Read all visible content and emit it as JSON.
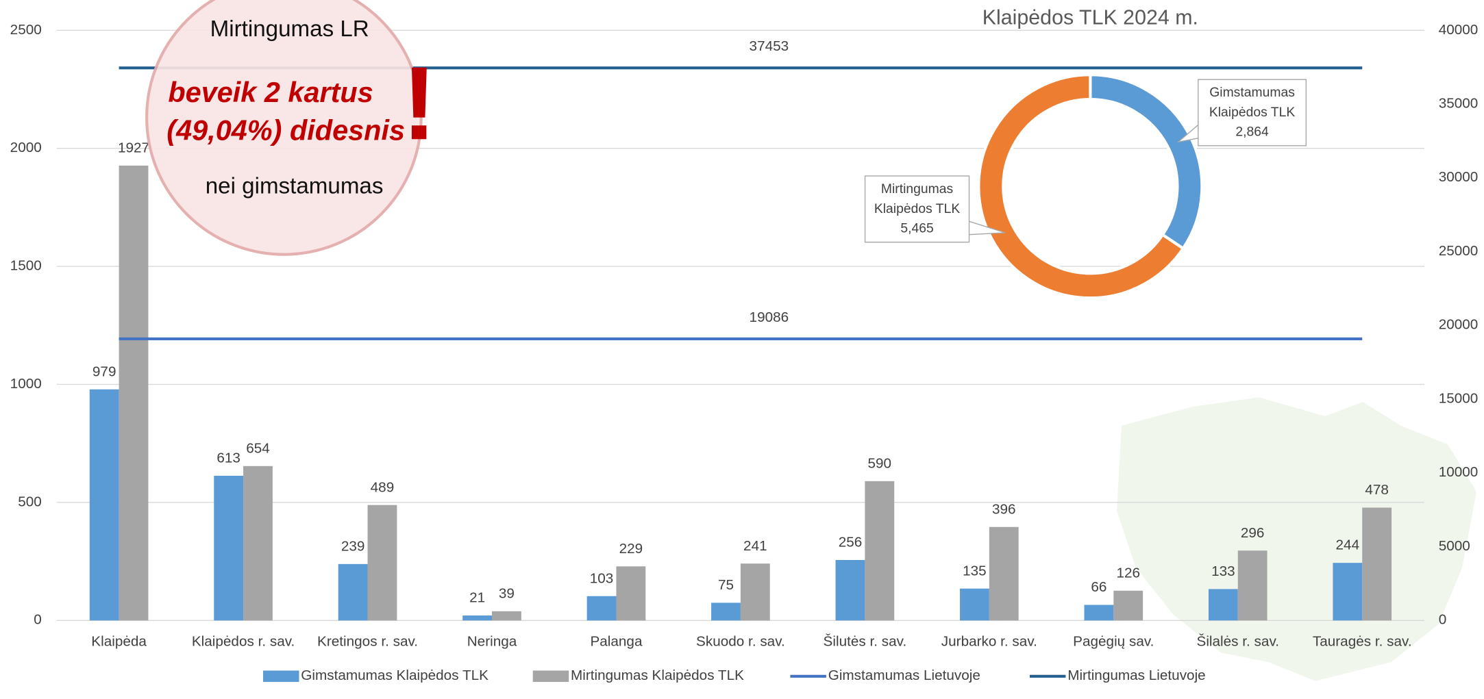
{
  "chart_data": [
    {
      "type": "bar",
      "categories": [
        "Klaipėda",
        "Klaipėdos r. sav.",
        "Kretingos r. sav.",
        "Neringa",
        "Palanga",
        "Skuodo r. sav.",
        "Šilutės r. sav.",
        "Jurbarko r. sav.",
        "Pagėgių sav.",
        "Šilalės r. sav.",
        "Tauragės r. sav."
      ],
      "series": [
        {
          "name": "Gimstamumas Klaipėdos TLK",
          "color": "#5b9bd5",
          "values": [
            979,
            613,
            239,
            21,
            103,
            75,
            256,
            135,
            66,
            133,
            244
          ]
        },
        {
          "name": "Mirtingumas Klaipėdos TLK",
          "color": "#a5a5a5",
          "values": [
            1927,
            654,
            489,
            39,
            229,
            241,
            590,
            396,
            126,
            296,
            478
          ]
        },
        {
          "name": "Gimstamumas Lietuvoje",
          "color": "#4472c4",
          "axis": "y2",
          "values": [
            19086,
            19086,
            19086,
            19086,
            19086,
            19086,
            19086,
            19086,
            19086,
            19086,
            19086
          ]
        },
        {
          "name": "Mirtingumas Lietuvoje",
          "color": "#255e91",
          "axis": "y2",
          "values": [
            37453,
            37453,
            37453,
            37453,
            37453,
            37453,
            37453,
            37453,
            37453,
            37453,
            37453
          ]
        }
      ],
      "ylim": [
        0,
        2500
      ],
      "yticks": [
        0,
        500,
        1000,
        1500,
        2000,
        2500
      ],
      "y2lim": [
        0,
        40000
      ],
      "y2ticks": [
        0,
        5000,
        10000,
        15000,
        20000,
        25000,
        30000,
        35000,
        40000
      ],
      "grid": true,
      "legend": "bottom"
    },
    {
      "type": "donut",
      "title": "Klaipėdos TLK 2024 m.",
      "categories": [
        "Gimstamumas Klaipėdos TLK",
        "Mirtingumas Klaipėdos TLK"
      ],
      "values": [
        2864,
        5465
      ],
      "value_labels": [
        "2,864",
        "5,465"
      ],
      "colors": [
        "#5b9bd5",
        "#ed7d31"
      ]
    }
  ],
  "callout": {
    "title": "Mirtingumas LR",
    "line1": "beveik 2 kartus",
    "line2": "(49,04%) didesnis",
    "line3": "nei gimstamumas",
    "mark": "!"
  }
}
